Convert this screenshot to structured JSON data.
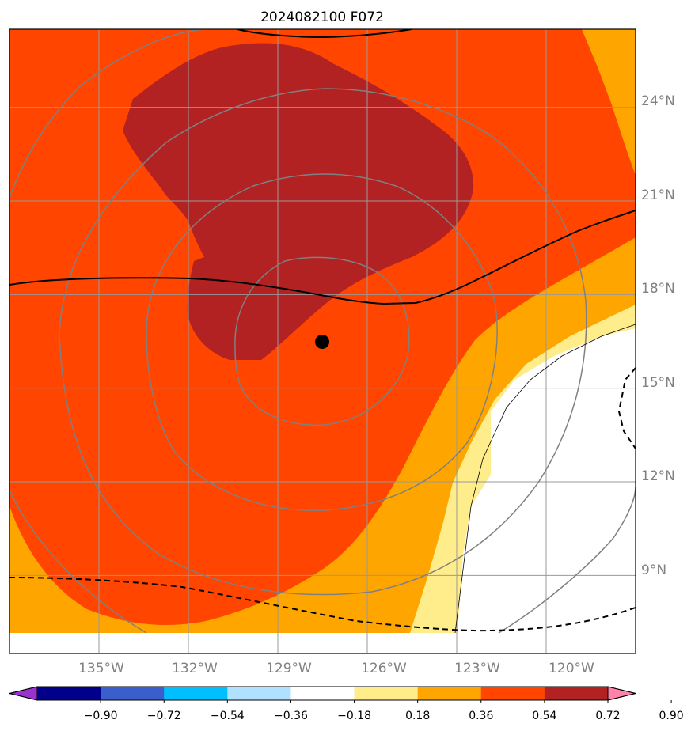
{
  "title": "2024082100 F072",
  "map": {
    "lon_range": [
      -138,
      -117
    ],
    "lat_range": [
      6.5,
      26.5
    ],
    "lon_labels": [
      "135°W",
      "132°W",
      "129°W",
      "126°W",
      "123°W",
      "120°W"
    ],
    "lat_labels": [
      "24°N",
      "21°N",
      "18°N",
      "15°N",
      "12°N",
      "9°N"
    ],
    "center_marker": {
      "lon": -128,
      "lat": 16.3
    }
  },
  "colorbar": {
    "ticks": [
      "−0.90",
      "−0.72",
      "−0.54",
      "−0.36",
      "−0.18",
      "0.18",
      "0.36",
      "0.54",
      "0.72",
      "0.90"
    ],
    "colors": [
      "#9a32cd",
      "#00008b",
      "#3a5fcd",
      "#00bfff",
      "#b0e2ff",
      "#ffffff",
      "#ffec8b",
      "#ffa500",
      "#ff4500",
      "#b22222",
      "#ff82ab"
    ],
    "extend": "both"
  },
  "colors": {
    "fill_0_90": "#b22222",
    "fill_0_72": "#ff4500",
    "fill_0_54": "#ffa500",
    "fill_0_36": "#ffec8b",
    "gridline": "#999999",
    "range_rings": "#808080",
    "contour": "#000000"
  }
}
